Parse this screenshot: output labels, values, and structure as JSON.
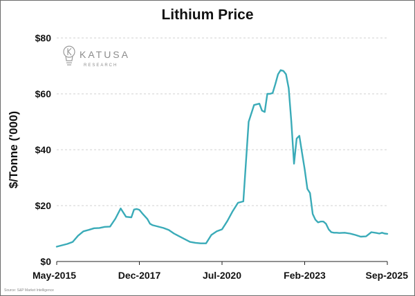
{
  "chart_data": {
    "type": "line",
    "title": "Lithium Price",
    "ylabel": "$/Tonne ('000)",
    "xlabel": "",
    "ylim": [
      0,
      80
    ],
    "y_ticks": [
      "$0",
      "$20",
      "$40",
      "$60",
      "$80"
    ],
    "y_tick_values": [
      0,
      20,
      40,
      60,
      80
    ],
    "x_ticks": [
      "May-2015",
      "Dec-2017",
      "Jul-2020",
      "Feb-2023",
      "Sep-2025"
    ],
    "x_tick_dates": [
      "2015-05",
      "2017-12",
      "2020-07",
      "2023-02",
      "2025-09"
    ],
    "grid": true,
    "line_color": "#3aabb8",
    "series": [
      {
        "x": [
          "2015-05",
          "2015-07",
          "2015-09",
          "2015-11",
          "2016-01",
          "2016-03",
          "2016-05",
          "2016-07",
          "2016-09",
          "2016-11",
          "2017-01",
          "2017-03",
          "2017-05",
          "2017-07",
          "2017-09",
          "2017-10",
          "2017-11",
          "2017-12",
          "2018-01",
          "2018-03",
          "2018-04",
          "2018-05",
          "2018-07",
          "2018-09",
          "2018-11",
          "2019-01",
          "2019-03",
          "2019-05",
          "2019-07",
          "2019-09",
          "2019-11",
          "2020-01",
          "2020-03",
          "2020-05",
          "2020-07",
          "2020-09",
          "2020-11",
          "2021-01",
          "2021-03",
          "2021-05",
          "2021-07",
          "2021-09",
          "2021-10",
          "2021-11",
          "2021-12",
          "2022-01",
          "2022-02",
          "2022-03",
          "2022-04",
          "2022-05",
          "2022-06",
          "2022-07",
          "2022-08",
          "2022-09",
          "2022-10",
          "2022-11",
          "2022-12",
          "2023-01",
          "2023-02",
          "2023-03",
          "2023-04",
          "2023-05",
          "2023-06",
          "2023-07",
          "2023-08",
          "2023-09",
          "2023-10",
          "2023-11",
          "2023-12",
          "2024-01",
          "2024-02",
          "2024-03",
          "2024-05",
          "2024-07",
          "2024-09",
          "2024-11",
          "2025-01",
          "2025-03",
          "2025-05",
          "2025-06",
          "2025-07",
          "2025-08",
          "2025-09"
        ],
        "y": [
          5.3,
          5.8,
          6.3,
          7.0,
          9.2,
          10.8,
          11.3,
          11.9,
          12.0,
          12.4,
          12.5,
          15.3,
          19.0,
          16.0,
          15.8,
          18.6,
          18.8,
          18.5,
          17.3,
          15.2,
          13.5,
          13.0,
          12.5,
          12.0,
          11.3,
          10.0,
          9.0,
          8.0,
          7.0,
          6.7,
          6.5,
          6.5,
          9.5,
          10.8,
          11.5,
          14.5,
          18.0,
          21.0,
          21.5,
          50.0,
          56.0,
          56.5,
          54.0,
          53.5,
          60.0,
          60.0,
          60.3,
          63.5,
          67.0,
          68.5,
          68.2,
          67.0,
          62.0,
          50.0,
          35.0,
          44.0,
          45.0,
          39.0,
          33.0,
          26.0,
          24.5,
          17.0,
          15.0,
          14.0,
          14.3,
          14.3,
          13.5,
          11.5,
          10.5,
          10.3,
          10.3,
          10.2,
          10.3,
          10.0,
          9.5,
          8.9,
          9.0,
          10.5,
          10.2,
          10.0,
          10.3,
          10.0,
          9.9
        ]
      }
    ]
  },
  "logo": {
    "name": "KATUSA",
    "sub": "RESEARCH"
  },
  "source_note": "Source: S&P Market Intelligence"
}
